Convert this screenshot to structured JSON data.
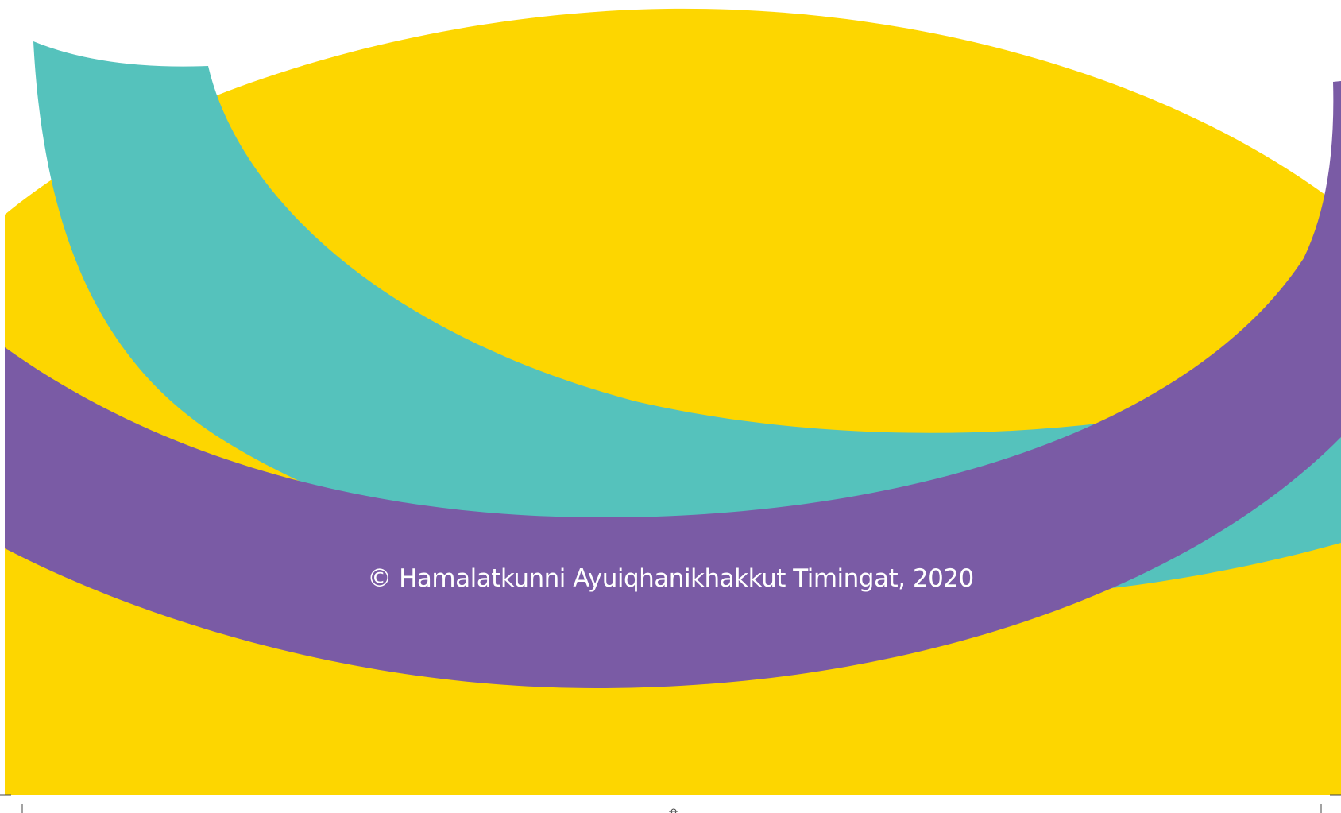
{
  "copyright": "© Hamalatkunni Ayuiqhanikhakkut Timingat, 2020",
  "colors": {
    "background": "#ffffff",
    "yellow": "#fdd600",
    "teal": "#55c2bc",
    "purple": "#7a5ba5",
    "text": "#ffffff",
    "crop_marks": "#444444"
  }
}
